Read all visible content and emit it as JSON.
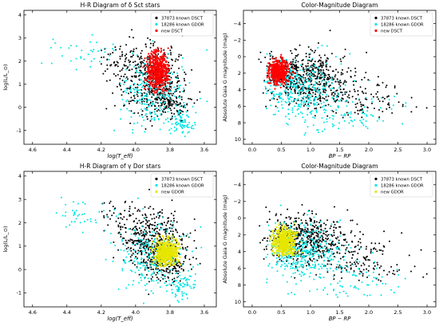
{
  "colors": {
    "known_dsct": "#000000",
    "known_gdor": "#00e5e5",
    "new_dsct": "#ff0000",
    "new_gdor": "#e6e600",
    "axis": "#000000",
    "background": "#ffffff"
  },
  "chart_data": [
    {
      "type": "scatter",
      "title": "H-R Diagram of δ Sct stars",
      "xlabel": "log(T_eff)",
      "ylabel": "log(L/L_⊙)",
      "xlim": [
        4.65,
        3.53
      ],
      "ylim": [
        -1.6,
        4.2
      ],
      "x_inverted": true,
      "xticks": [
        4.6,
        4.4,
        4.2,
        4.0,
        3.8,
        3.6
      ],
      "xtick_labels": [
        "4.6",
        "4.4",
        "4.2",
        "4.0",
        "3.8",
        "3.6"
      ],
      "yticks": [
        -1,
        0,
        1,
        2,
        3,
        4
      ],
      "ytick_labels": [
        "-1",
        "0",
        "1",
        "2",
        "3",
        "4"
      ],
      "grid": false,
      "legend_position": "top-right",
      "series": [
        {
          "name": "37873 known DSCT",
          "color": "#000000",
          "x_range": [
            3.6,
            4.2
          ],
          "y_range": [
            -1.3,
            3.6
          ],
          "centroid": [
            3.9,
            1.2
          ]
        },
        {
          "name": "18286 known GDOR",
          "color": "#00e5e5",
          "x_range": [
            3.58,
            4.55
          ],
          "y_range": [
            -1.5,
            3.2
          ],
          "centroid": [
            3.85,
            0.7
          ]
        },
        {
          "name": "new DSCT",
          "color": "#ff0000",
          "x_range": [
            3.8,
            3.98
          ],
          "y_range": [
            0.6,
            2.6
          ],
          "centroid": [
            3.87,
            1.6
          ]
        }
      ]
    },
    {
      "type": "scatter",
      "title": "Color-Magnitude Diagram",
      "xlabel": "BP − RP",
      "ylabel": "Absolute Gaia G magnitude (mag)",
      "xlim": [
        -0.15,
        3.15
      ],
      "ylim": [
        10.6,
        -5.6
      ],
      "y_inverted": true,
      "xticks": [
        0.0,
        0.5,
        1.0,
        1.5,
        2.0,
        2.5,
        3.0
      ],
      "xtick_labels": [
        "0.0",
        "0.5",
        "1.0",
        "1.5",
        "2.0",
        "2.5",
        "3.0"
      ],
      "yticks": [
        -4,
        -2,
        0,
        2,
        4,
        6,
        8,
        10
      ],
      "ytick_labels": [
        "−4",
        "−2",
        "0",
        "2",
        "4",
        "6",
        "8",
        "10"
      ],
      "grid": false,
      "legend_position": "top-right",
      "series": [
        {
          "name": "37873 known DSCT",
          "color": "#000000",
          "x_range": [
            0.1,
            3.0
          ],
          "y_range": [
            -3.5,
            7.5
          ],
          "centroid": [
            0.9,
            2.5
          ]
        },
        {
          "name": "18286 known GDOR",
          "color": "#00e5e5",
          "x_range": [
            0.2,
            2.7
          ],
          "y_range": [
            -2.5,
            9.5
          ],
          "centroid": [
            0.8,
            3.5
          ]
        },
        {
          "name": "new DSCT",
          "color": "#ff0000",
          "x_range": [
            0.25,
            0.75
          ],
          "y_range": [
            -0.5,
            4.0
          ],
          "centroid": [
            0.45,
            1.8
          ]
        }
      ]
    },
    {
      "type": "scatter",
      "title": "H-R Diagram of γ Dor stars",
      "xlabel": "log(T_eff)",
      "ylabel": "log(L/L_⊙)",
      "xlim": [
        4.65,
        3.53
      ],
      "ylim": [
        -1.6,
        4.2
      ],
      "x_inverted": true,
      "xticks": [
        4.6,
        4.4,
        4.2,
        4.0,
        3.8,
        3.6
      ],
      "xtick_labels": [
        "4.6",
        "4.4",
        "4.2",
        "4.0",
        "3.8",
        "3.6"
      ],
      "yticks": [
        -1,
        0,
        1,
        2,
        3,
        4
      ],
      "ytick_labels": [
        "-1",
        "0",
        "1",
        "2",
        "3",
        "4"
      ],
      "grid": false,
      "legend_position": "top-right",
      "series": [
        {
          "name": "37873 known DSCT",
          "color": "#000000",
          "x_range": [
            3.6,
            4.2
          ],
          "y_range": [
            -1.3,
            3.6
          ],
          "centroid": [
            3.9,
            1.2
          ]
        },
        {
          "name": "18286 known GDOR",
          "color": "#00e5e5",
          "x_range": [
            3.58,
            4.55
          ],
          "y_range": [
            -1.5,
            3.2
          ],
          "centroid": [
            3.85,
            0.7
          ]
        },
        {
          "name": "new GDOR",
          "color": "#e6e600",
          "x_range": [
            3.74,
            3.92
          ],
          "y_range": [
            0.0,
            1.5
          ],
          "centroid": [
            3.82,
            0.7
          ]
        }
      ]
    },
    {
      "type": "scatter",
      "title": "Color-Magnitude Diagram",
      "xlabel": "BP − RP",
      "ylabel": "Absolute Gaia G magnitude (mag)",
      "xlim": [
        -0.15,
        3.15
      ],
      "ylim": [
        10.6,
        -5.6
      ],
      "y_inverted": true,
      "xticks": [
        0.0,
        0.5,
        1.0,
        1.5,
        2.0,
        2.5,
        3.0
      ],
      "xtick_labels": [
        "0.0",
        "0.5",
        "1.0",
        "1.5",
        "2.0",
        "2.5",
        "3.0"
      ],
      "yticks": [
        -4,
        -2,
        0,
        2,
        4,
        6,
        8,
        10
      ],
      "ytick_labels": [
        "−4",
        "−2",
        "0",
        "2",
        "4",
        "6",
        "8",
        "10"
      ],
      "grid": false,
      "legend_position": "top-right",
      "series": [
        {
          "name": "37873 known DSCT",
          "color": "#000000",
          "x_range": [
            0.1,
            3.0
          ],
          "y_range": [
            -3.5,
            7.5
          ],
          "centroid": [
            0.9,
            2.5
          ]
        },
        {
          "name": "18286 known GDOR",
          "color": "#00e5e5",
          "x_range": [
            0.2,
            2.7
          ],
          "y_range": [
            -2.5,
            9.5
          ],
          "centroid": [
            0.8,
            3.5
          ]
        },
        {
          "name": "new GDOR",
          "color": "#e6e600",
          "x_range": [
            0.3,
            0.9
          ],
          "y_range": [
            0.0,
            4.5
          ],
          "centroid": [
            0.55,
            2.8
          ]
        }
      ]
    }
  ]
}
